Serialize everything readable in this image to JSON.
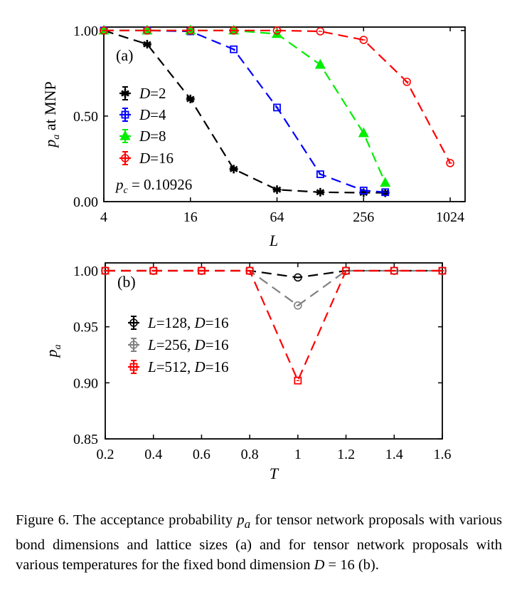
{
  "chart_data": [
    {
      "type": "line",
      "panel_label": "(a)",
      "xlabel": "L",
      "ylabel": "p_a at MNP",
      "xscale": "log2",
      "xlim": [
        4,
        1300
      ],
      "ylim": [
        0,
        1.02
      ],
      "xticks": [
        4,
        16,
        64,
        256,
        1024
      ],
      "xtick_labels": [
        "4",
        "16",
        "64",
        "256",
        "1024"
      ],
      "yticks": [
        0,
        0.5,
        1.0
      ],
      "ytick_labels": [
        "0.00",
        "0.50",
        "1.00"
      ],
      "annotation": "p_c = 0.10926",
      "legend_position": "center-left",
      "series": [
        {
          "name": "D=2",
          "color": "#000000",
          "marker": "asterisk",
          "x": [
            4,
            8,
            16,
            32,
            64,
            128,
            256,
            362
          ],
          "y": [
            1.0,
            0.92,
            0.6,
            0.19,
            0.07,
            0.055,
            0.052,
            0.052
          ]
        },
        {
          "name": "D=4",
          "color": "#0000ff",
          "marker": "square",
          "x": [
            4,
            8,
            16,
            32,
            64,
            128,
            256,
            362
          ],
          "y": [
            1.0,
            1.0,
            0.995,
            0.89,
            0.55,
            0.16,
            0.065,
            0.055
          ]
        },
        {
          "name": "D=8",
          "color": "#00ee00",
          "marker": "triangle",
          "x": [
            4,
            8,
            16,
            32,
            64,
            128,
            256,
            362
          ],
          "y": [
            1.0,
            1.0,
            1.0,
            1.0,
            0.98,
            0.8,
            0.4,
            0.11
          ]
        },
        {
          "name": "D=16",
          "color": "#ff0000",
          "marker": "circle",
          "x": [
            4,
            8,
            16,
            32,
            64,
            128,
            256,
            512,
            1024
          ],
          "y": [
            1.0,
            1.0,
            1.0,
            1.0,
            1.0,
            0.995,
            0.945,
            0.7,
            0.225
          ]
        }
      ]
    },
    {
      "type": "line",
      "panel_label": "(b)",
      "xlabel": "T",
      "ylabel": "p_a",
      "xlim": [
        0.2,
        1.6
      ],
      "ylim": [
        0.85,
        1.007
      ],
      "xticks": [
        0.2,
        0.4,
        0.6,
        0.8,
        1.0,
        1.2,
        1.4,
        1.6
      ],
      "xtick_labels": [
        "0.2",
        "0.4",
        "0.6",
        "0.8",
        "1",
        "1.2",
        "1.4",
        "1.6"
      ],
      "yticks": [
        0.85,
        0.9,
        0.95,
        1.0
      ],
      "ytick_labels": [
        "0.85",
        "0.90",
        "0.95",
        "1.00"
      ],
      "legend_position": "center-left",
      "series": [
        {
          "name": "L=128, D=16",
          "color": "#000000",
          "marker": "circle",
          "x": [
            0.2,
            0.4,
            0.6,
            0.8,
            1.0,
            1.2,
            1.4,
            1.6
          ],
          "y": [
            1.0,
            1.0,
            1.0,
            1.0,
            0.994,
            1.0,
            1.0,
            1.0
          ]
        },
        {
          "name": "L=256, D=16",
          "color": "#808080",
          "marker": "circle",
          "x": [
            0.2,
            0.4,
            0.6,
            0.8,
            1.0,
            1.2,
            1.4,
            1.6
          ],
          "y": [
            1.0,
            1.0,
            1.0,
            1.0,
            0.969,
            1.0,
            1.0,
            1.0
          ]
        },
        {
          "name": "L=512, D=16",
          "color": "#ff0000",
          "marker": "square",
          "x": [
            0.2,
            0.4,
            0.6,
            0.8,
            1.0,
            1.2,
            1.4,
            1.6
          ],
          "y": [
            1.0,
            1.0,
            1.0,
            1.0,
            0.902,
            1.0,
            1.0,
            1.0
          ]
        }
      ]
    }
  ],
  "caption": {
    "lead": "Figure 6.   The acceptance probability ",
    "symbol": "p",
    "symbol_sub": "a",
    "middle": " for tensor network proposals with various bond dimensions and lattice sizes (a) and for tensor network proposals with various temperatures for the fixed bond dimension ",
    "symbol2": "D",
    "tail": " = 16 (b)."
  }
}
